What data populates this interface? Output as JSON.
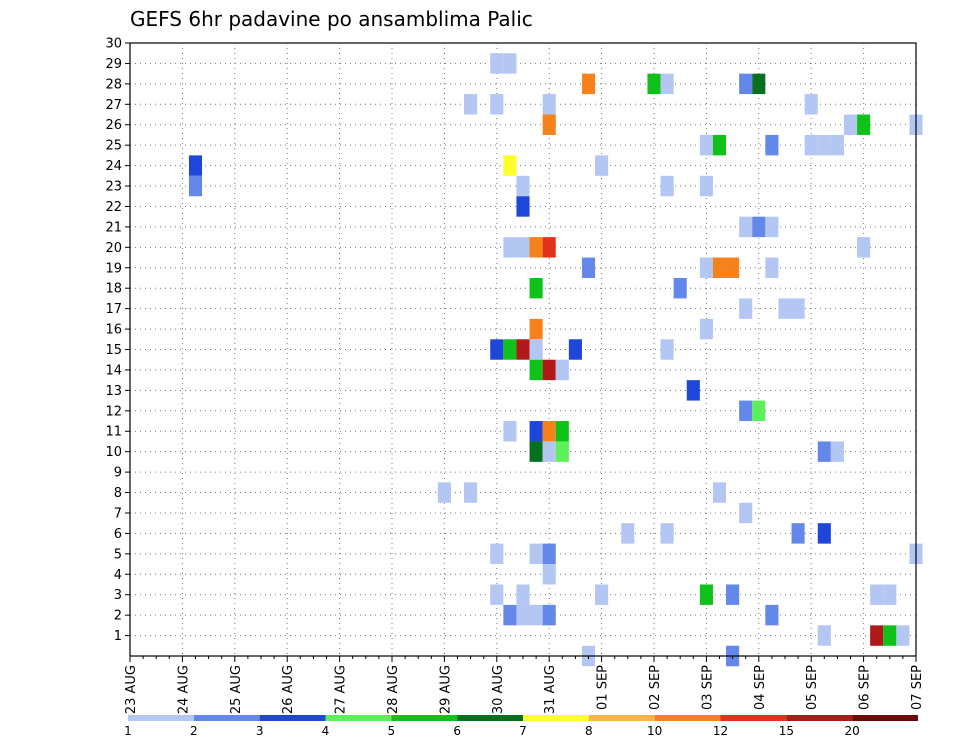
{
  "chart_data": {
    "type": "heatmap",
    "title": "GEFS 6hr padavine po ansamblima Palic",
    "x_tick_labels": [
      "23 AUG",
      "24 AUG",
      "25 AUG",
      "26 AUG",
      "27 AUG",
      "28 AUG",
      "29 AUG",
      "30 AUG",
      "31 AUG",
      "01 SEP",
      "02 SEP",
      "03 SEP",
      "04 SEP",
      "05 SEP",
      "06 SEP",
      "07 SEP"
    ],
    "y_tick_labels": [
      "1",
      "2",
      "3",
      "4",
      "5",
      "6",
      "7",
      "8",
      "9",
      "10",
      "11",
      "12",
      "13",
      "14",
      "15",
      "16",
      "17",
      "18",
      "19",
      "20",
      "21",
      "22",
      "23",
      "24",
      "25",
      "26",
      "27",
      "28",
      "29",
      "30"
    ],
    "steps_per_day": 4,
    "n_steps": 61,
    "grid": true,
    "colorbar": {
      "labels": [
        "1",
        "2",
        "3",
        "4",
        "5",
        "6",
        "7",
        "8",
        "10",
        "12",
        "15",
        "20"
      ],
      "colors": [
        "#b4c6f2",
        "#6488ea",
        "#1e46d8",
        "#5ef05a",
        "#0fc21a",
        "#06701e",
        "#ffff2a",
        "#fcb34a",
        "#f7811a",
        "#e0331a",
        "#b0191a",
        "#6a0a0a"
      ]
    },
    "cells": [
      {
        "member": 29,
        "t": 28,
        "v": 1
      },
      {
        "member": 29,
        "t": 29,
        "v": 1
      },
      {
        "member": 28,
        "t": 35,
        "v": 9
      },
      {
        "member": 28,
        "t": 40,
        "v": 5
      },
      {
        "member": 28,
        "t": 41,
        "v": 1
      },
      {
        "member": 28,
        "t": 47,
        "v": 2
      },
      {
        "member": 28,
        "t": 48,
        "v": 6
      },
      {
        "member": 27,
        "t": 26,
        "v": 1
      },
      {
        "member": 27,
        "t": 28,
        "v": 1
      },
      {
        "member": 27,
        "t": 32,
        "v": 1
      },
      {
        "member": 27,
        "t": 52,
        "v": 1
      },
      {
        "member": 26,
        "t": 32,
        "v": 9
      },
      {
        "member": 26,
        "t": 55,
        "v": 1
      },
      {
        "member": 26,
        "t": 56,
        "v": 5
      },
      {
        "member": 26,
        "t": 60,
        "v": 1
      },
      {
        "member": 25,
        "t": 44,
        "v": 1
      },
      {
        "member": 25,
        "t": 45,
        "v": 5
      },
      {
        "member": 25,
        "t": 49,
        "v": 2
      },
      {
        "member": 25,
        "t": 52,
        "v": 1
      },
      {
        "member": 25,
        "t": 53,
        "v": 1
      },
      {
        "member": 25,
        "t": 54,
        "v": 1
      },
      {
        "member": 24,
        "t": 5,
        "v": 3
      },
      {
        "member": 24,
        "t": 29,
        "v": 7
      },
      {
        "member": 24,
        "t": 36,
        "v": 1
      },
      {
        "member": 23,
        "t": 5,
        "v": 2
      },
      {
        "member": 23,
        "t": 30,
        "v": 1
      },
      {
        "member": 23,
        "t": 41,
        "v": 1
      },
      {
        "member": 23,
        "t": 44,
        "v": 1
      },
      {
        "member": 22,
        "t": 30,
        "v": 3
      },
      {
        "member": 21,
        "t": 47,
        "v": 1
      },
      {
        "member": 21,
        "t": 48,
        "v": 2
      },
      {
        "member": 21,
        "t": 49,
        "v": 1
      },
      {
        "member": 20,
        "t": 29,
        "v": 1
      },
      {
        "member": 20,
        "t": 30,
        "v": 1
      },
      {
        "member": 20,
        "t": 31,
        "v": 9
      },
      {
        "member": 20,
        "t": 32,
        "v": 10
      },
      {
        "member": 20,
        "t": 56,
        "v": 1
      },
      {
        "member": 19,
        "t": 35,
        "v": 2
      },
      {
        "member": 19,
        "t": 44,
        "v": 1
      },
      {
        "member": 19,
        "t": 45,
        "v": 9
      },
      {
        "member": 19,
        "t": 46,
        "v": 9
      },
      {
        "member": 19,
        "t": 49,
        "v": 1
      },
      {
        "member": 18,
        "t": 31,
        "v": 5
      },
      {
        "member": 18,
        "t": 42,
        "v": 2
      },
      {
        "member": 17,
        "t": 47,
        "v": 1
      },
      {
        "member": 17,
        "t": 50,
        "v": 1
      },
      {
        "member": 17,
        "t": 51,
        "v": 1
      },
      {
        "member": 16,
        "t": 31,
        "v": 9
      },
      {
        "member": 16,
        "t": 44,
        "v": 1
      },
      {
        "member": 15,
        "t": 28,
        "v": 3
      },
      {
        "member": 15,
        "t": 29,
        "v": 5
      },
      {
        "member": 15,
        "t": 30,
        "v": 11
      },
      {
        "member": 15,
        "t": 31,
        "v": 1
      },
      {
        "member": 15,
        "t": 34,
        "v": 3
      },
      {
        "member": 15,
        "t": 41,
        "v": 1
      },
      {
        "member": 14,
        "t": 31,
        "v": 5
      },
      {
        "member": 14,
        "t": 32,
        "v": 11
      },
      {
        "member": 14,
        "t": 33,
        "v": 1
      },
      {
        "member": 13,
        "t": 43,
        "v": 3
      },
      {
        "member": 12,
        "t": 47,
        "v": 2
      },
      {
        "member": 12,
        "t": 48,
        "v": 4
      },
      {
        "member": 11,
        "t": 29,
        "v": 1
      },
      {
        "member": 11,
        "t": 31,
        "v": 3
      },
      {
        "member": 11,
        "t": 32,
        "v": 9
      },
      {
        "member": 11,
        "t": 33,
        "v": 5
      },
      {
        "member": 10,
        "t": 31,
        "v": 6
      },
      {
        "member": 10,
        "t": 32,
        "v": 1
      },
      {
        "member": 10,
        "t": 33,
        "v": 4
      },
      {
        "member": 10,
        "t": 53,
        "v": 2
      },
      {
        "member": 10,
        "t": 54,
        "v": 1
      },
      {
        "member": 8,
        "t": 24,
        "v": 1
      },
      {
        "member": 8,
        "t": 26,
        "v": 1
      },
      {
        "member": 8,
        "t": 45,
        "v": 1
      },
      {
        "member": 7,
        "t": 47,
        "v": 1
      },
      {
        "member": 6,
        "t": 38,
        "v": 1
      },
      {
        "member": 6,
        "t": 41,
        "v": 1
      },
      {
        "member": 6,
        "t": 51,
        "v": 2
      },
      {
        "member": 6,
        "t": 53,
        "v": 3
      },
      {
        "member": 5,
        "t": 28,
        "v": 1
      },
      {
        "member": 5,
        "t": 31,
        "v": 1
      },
      {
        "member": 5,
        "t": 32,
        "v": 2
      },
      {
        "member": 5,
        "t": 60,
        "v": 1
      },
      {
        "member": 4,
        "t": 32,
        "v": 1
      },
      {
        "member": 3,
        "t": 28,
        "v": 1
      },
      {
        "member": 3,
        "t": 30,
        "v": 1
      },
      {
        "member": 3,
        "t": 36,
        "v": 1
      },
      {
        "member": 3,
        "t": 44,
        "v": 5
      },
      {
        "member": 3,
        "t": 46,
        "v": 2
      },
      {
        "member": 3,
        "t": 57,
        "v": 1
      },
      {
        "member": 3,
        "t": 58,
        "v": 1
      },
      {
        "member": 2,
        "t": 29,
        "v": 2
      },
      {
        "member": 2,
        "t": 30,
        "v": 1
      },
      {
        "member": 2,
        "t": 31,
        "v": 1
      },
      {
        "member": 2,
        "t": 32,
        "v": 2
      },
      {
        "member": 2,
        "t": 49,
        "v": 2
      },
      {
        "member": 1,
        "t": 53,
        "v": 1
      },
      {
        "member": 1,
        "t": 57,
        "v": 11
      },
      {
        "member": 1,
        "t": 58,
        "v": 5
      },
      {
        "member": 1,
        "t": 59,
        "v": 1
      },
      {
        "member": 0,
        "t": 35,
        "v": 1
      },
      {
        "member": 0,
        "t": 46,
        "v": 2
      }
    ]
  }
}
